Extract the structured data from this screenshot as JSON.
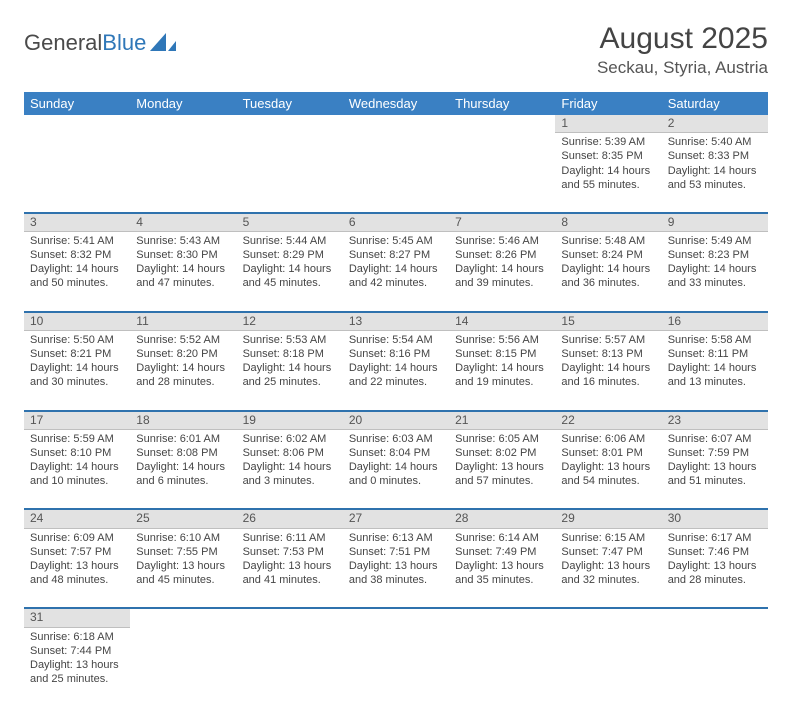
{
  "logo": {
    "text1": "General",
    "text2": "Blue"
  },
  "title": "August 2025",
  "location": "Seckau, Styria, Austria",
  "colors": {
    "header_bg": "#3a80c3",
    "row_divider": "#2f72ad",
    "daynum_bg": "#e2e2e2"
  },
  "weekdays": [
    "Sunday",
    "Monday",
    "Tuesday",
    "Wednesday",
    "Thursday",
    "Friday",
    "Saturday"
  ],
  "weeks": [
    {
      "days": [
        null,
        null,
        null,
        null,
        null,
        {
          "n": "1",
          "sunrise": "5:39 AM",
          "sunset": "8:35 PM",
          "daylight": "14 hours and 55 minutes."
        },
        {
          "n": "2",
          "sunrise": "5:40 AM",
          "sunset": "8:33 PM",
          "daylight": "14 hours and 53 minutes."
        }
      ]
    },
    {
      "days": [
        {
          "n": "3",
          "sunrise": "5:41 AM",
          "sunset": "8:32 PM",
          "daylight": "14 hours and 50 minutes."
        },
        {
          "n": "4",
          "sunrise": "5:43 AM",
          "sunset": "8:30 PM",
          "daylight": "14 hours and 47 minutes."
        },
        {
          "n": "5",
          "sunrise": "5:44 AM",
          "sunset": "8:29 PM",
          "daylight": "14 hours and 45 minutes."
        },
        {
          "n": "6",
          "sunrise": "5:45 AM",
          "sunset": "8:27 PM",
          "daylight": "14 hours and 42 minutes."
        },
        {
          "n": "7",
          "sunrise": "5:46 AM",
          "sunset": "8:26 PM",
          "daylight": "14 hours and 39 minutes."
        },
        {
          "n": "8",
          "sunrise": "5:48 AM",
          "sunset": "8:24 PM",
          "daylight": "14 hours and 36 minutes."
        },
        {
          "n": "9",
          "sunrise": "5:49 AM",
          "sunset": "8:23 PM",
          "daylight": "14 hours and 33 minutes."
        }
      ]
    },
    {
      "days": [
        {
          "n": "10",
          "sunrise": "5:50 AM",
          "sunset": "8:21 PM",
          "daylight": "14 hours and 30 minutes."
        },
        {
          "n": "11",
          "sunrise": "5:52 AM",
          "sunset": "8:20 PM",
          "daylight": "14 hours and 28 minutes."
        },
        {
          "n": "12",
          "sunrise": "5:53 AM",
          "sunset": "8:18 PM",
          "daylight": "14 hours and 25 minutes."
        },
        {
          "n": "13",
          "sunrise": "5:54 AM",
          "sunset": "8:16 PM",
          "daylight": "14 hours and 22 minutes."
        },
        {
          "n": "14",
          "sunrise": "5:56 AM",
          "sunset": "8:15 PM",
          "daylight": "14 hours and 19 minutes."
        },
        {
          "n": "15",
          "sunrise": "5:57 AM",
          "sunset": "8:13 PM",
          "daylight": "14 hours and 16 minutes."
        },
        {
          "n": "16",
          "sunrise": "5:58 AM",
          "sunset": "8:11 PM",
          "daylight": "14 hours and 13 minutes."
        }
      ]
    },
    {
      "days": [
        {
          "n": "17",
          "sunrise": "5:59 AM",
          "sunset": "8:10 PM",
          "daylight": "14 hours and 10 minutes."
        },
        {
          "n": "18",
          "sunrise": "6:01 AM",
          "sunset": "8:08 PM",
          "daylight": "14 hours and 6 minutes."
        },
        {
          "n": "19",
          "sunrise": "6:02 AM",
          "sunset": "8:06 PM",
          "daylight": "14 hours and 3 minutes."
        },
        {
          "n": "20",
          "sunrise": "6:03 AM",
          "sunset": "8:04 PM",
          "daylight": "14 hours and 0 minutes."
        },
        {
          "n": "21",
          "sunrise": "6:05 AM",
          "sunset": "8:02 PM",
          "daylight": "13 hours and 57 minutes."
        },
        {
          "n": "22",
          "sunrise": "6:06 AM",
          "sunset": "8:01 PM",
          "daylight": "13 hours and 54 minutes."
        },
        {
          "n": "23",
          "sunrise": "6:07 AM",
          "sunset": "7:59 PM",
          "daylight": "13 hours and 51 minutes."
        }
      ]
    },
    {
      "days": [
        {
          "n": "24",
          "sunrise": "6:09 AM",
          "sunset": "7:57 PM",
          "daylight": "13 hours and 48 minutes."
        },
        {
          "n": "25",
          "sunrise": "6:10 AM",
          "sunset": "7:55 PM",
          "daylight": "13 hours and 45 minutes."
        },
        {
          "n": "26",
          "sunrise": "6:11 AM",
          "sunset": "7:53 PM",
          "daylight": "13 hours and 41 minutes."
        },
        {
          "n": "27",
          "sunrise": "6:13 AM",
          "sunset": "7:51 PM",
          "daylight": "13 hours and 38 minutes."
        },
        {
          "n": "28",
          "sunrise": "6:14 AM",
          "sunset": "7:49 PM",
          "daylight": "13 hours and 35 minutes."
        },
        {
          "n": "29",
          "sunrise": "6:15 AM",
          "sunset": "7:47 PM",
          "daylight": "13 hours and 32 minutes."
        },
        {
          "n": "30",
          "sunrise": "6:17 AM",
          "sunset": "7:46 PM",
          "daylight": "13 hours and 28 minutes."
        }
      ]
    },
    {
      "days": [
        {
          "n": "31",
          "sunrise": "6:18 AM",
          "sunset": "7:44 PM",
          "daylight": "13 hours and 25 minutes."
        },
        null,
        null,
        null,
        null,
        null,
        null
      ]
    }
  ]
}
